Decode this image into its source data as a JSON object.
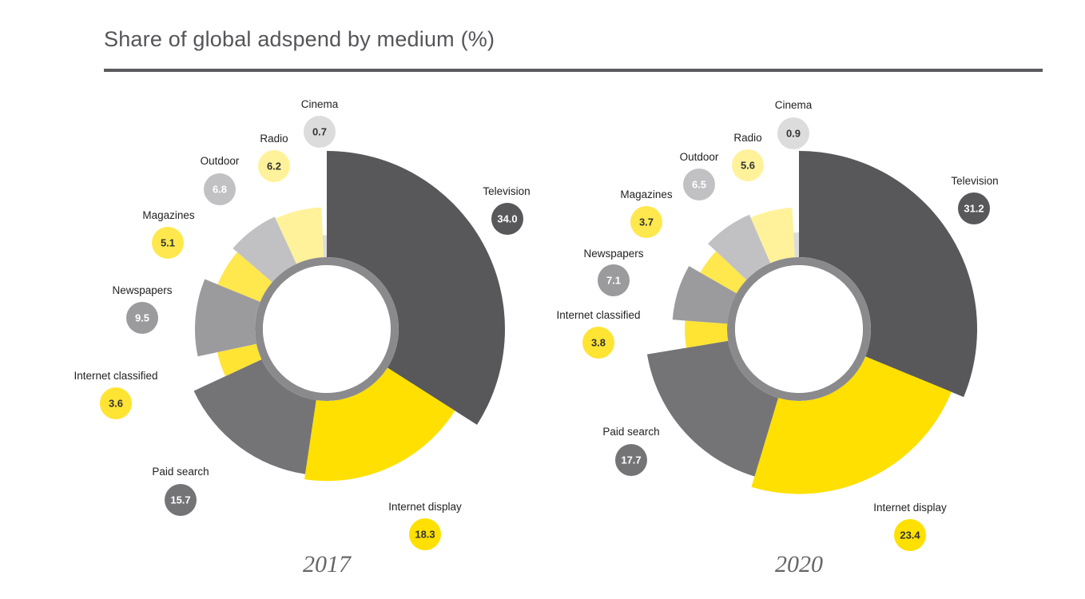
{
  "title": "Share of global adspend by medium (%)",
  "colors": {
    "Television": "#58585b",
    "Internet display": "#ffe000",
    "Paid search": "#747477",
    "Internet classified": "#ffe433",
    "Newspapers": "#9b9b9e",
    "Magazines": "#ffe84d",
    "Outdoor": "#c1c1c3",
    "Radio": "#fff29a",
    "Cinema": "#dcdcdd",
    "rule": "#5a5a5e"
  },
  "chart_data": [
    {
      "type": "pie",
      "title": "2017",
      "categories": [
        "Television",
        "Internet display",
        "Paid search",
        "Internet classified",
        "Newspapers",
        "Magazines",
        "Outdoor",
        "Radio",
        "Cinema"
      ],
      "values": [
        34.0,
        18.3,
        15.7,
        3.6,
        9.5,
        5.1,
        6.8,
        6.2,
        0.7
      ],
      "value_labels": [
        "34.0",
        "18.3",
        "15.7",
        "3.6",
        "9.5",
        "5.1",
        "6.8",
        "6.2",
        "0.7"
      ]
    },
    {
      "type": "pie",
      "title": "2020",
      "categories": [
        "Television",
        "Internet display",
        "Paid search",
        "Internet classified",
        "Newspapers",
        "Magazines",
        "Outdoor",
        "Radio",
        "Cinema"
      ],
      "values": [
        31.2,
        23.4,
        17.7,
        3.8,
        7.1,
        3.7,
        6.5,
        5.6,
        0.9
      ],
      "value_labels": [
        "31.2",
        "23.4",
        "17.7",
        "3.8",
        "7.1",
        "3.7",
        "6.5",
        "5.6",
        "0.9"
      ]
    }
  ]
}
